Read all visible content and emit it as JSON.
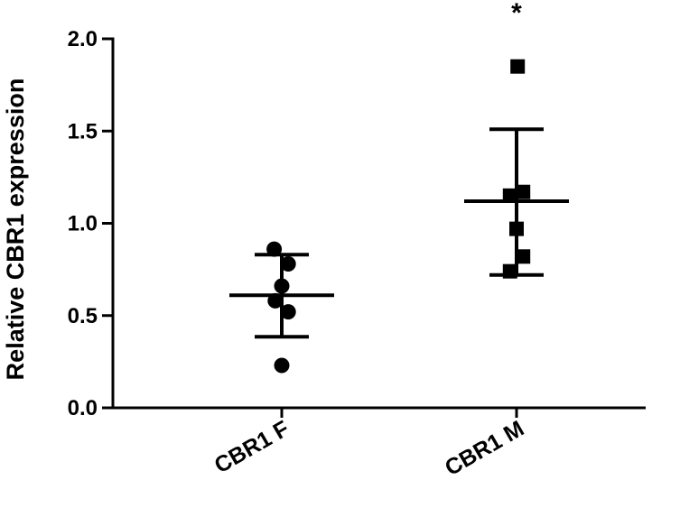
{
  "chart_data": {
    "type": "scatter",
    "ylabel": "Relative CBR1 expression",
    "ylim": [
      0,
      2.0
    ],
    "yticks": [
      0.0,
      0.5,
      1.0,
      1.5,
      2.0
    ],
    "ytick_labels": [
      "0.0",
      "0.5",
      "1.0",
      "1.5",
      "2.0"
    ],
    "categories": [
      "CBR1 F",
      "CBR1 M"
    ],
    "grid": false,
    "legend": "none",
    "series": [
      {
        "category": "CBR1 F",
        "marker": "circle",
        "points": [
          0.86,
          0.78,
          0.66,
          0.58,
          0.52,
          0.23
        ],
        "jitter": [
          -0.35,
          0.3,
          0.0,
          -0.3,
          0.3,
          0.0
        ],
        "mean": 0.61,
        "sd_low": 0.385,
        "sd_high": 0.83,
        "annotation": ""
      },
      {
        "category": "CBR1 M",
        "marker": "square",
        "points": [
          1.85,
          1.17,
          1.15,
          0.97,
          0.82,
          0.74
        ],
        "jitter": [
          0.05,
          0.3,
          -0.3,
          0.0,
          0.3,
          -0.3
        ],
        "mean": 1.12,
        "sd_low": 0.72,
        "sd_high": 1.51,
        "annotation": "*"
      }
    ],
    "colors": {
      "marks": "#000000"
    }
  }
}
